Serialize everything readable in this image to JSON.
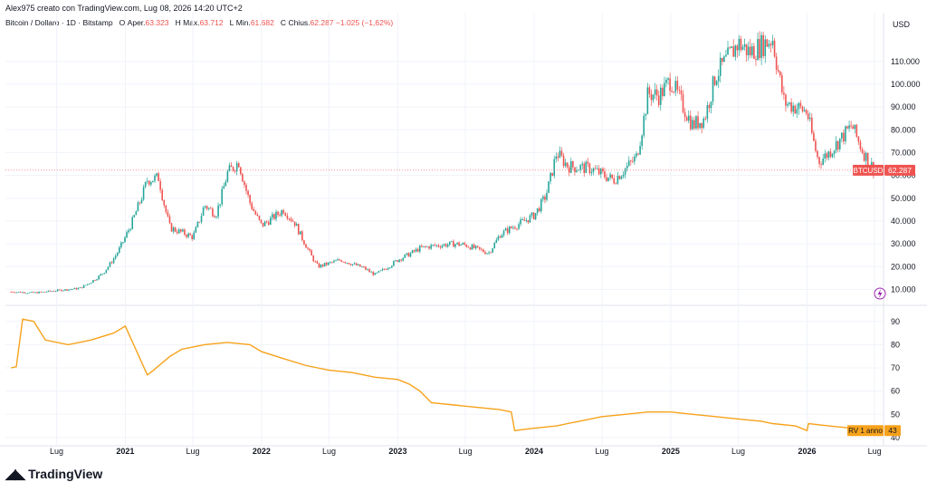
{
  "header": {
    "credit": "Alex975 creato con TradingView.com, Lug 08, 2026 14:20 UTC+2",
    "symbol": "Bitcoin / Dollaro · 1D · Bitstamp",
    "open_label": "O",
    "open_text": "Aper.",
    "open_value": "63.323",
    "high_label": "H",
    "high_text": "Max.",
    "high_value": "63.712",
    "low_label": "L",
    "low_text": "Min.",
    "low_value": "61.682",
    "close_label": "C",
    "close_text": "Chius.",
    "close_value": "62.287",
    "change_value": "−1.025 (−1,62%)"
  },
  "footer": {
    "brand": "TradingView"
  },
  "colors": {
    "up": "#26a69a",
    "down": "#ef5350",
    "indicator": "#f7a21b",
    "last_price": "#ef5350",
    "grid": "#f0f3fa"
  },
  "chart_data": [
    {
      "type": "line",
      "title": "",
      "series": [
        {
          "name": "BTCUSD",
          "x": [
            "2020-03",
            "2020-05",
            "2020-07",
            "2020-09",
            "2020-11",
            "2021-01",
            "2021-02",
            "2021-03",
            "2021-04",
            "2021-05",
            "2021-06",
            "2021-07",
            "2021-08",
            "2021-09",
            "2021-10",
            "2021-11",
            "2021-12",
            "2022-01",
            "2022-03",
            "2022-04",
            "2022-05",
            "2022-06",
            "2022-08",
            "2022-10",
            "2022-11",
            "2023-01",
            "2023-03",
            "2023-04",
            "2023-06",
            "2023-07",
            "2023-09",
            "2023-10",
            "2023-11",
            "2024-01",
            "2024-02",
            "2024-03",
            "2024-04",
            "2024-06",
            "2024-08",
            "2024-10",
            "2024-11",
            "2024-12",
            "2025-01",
            "2025-03",
            "2025-04",
            "2025-05",
            "2025-07",
            "2025-08",
            "2025-10",
            "2025-11",
            "2026-01",
            "2026-02",
            "2026-03",
            "2026-04",
            "2026-05",
            "2026-06",
            "2026-07"
          ],
          "values": [
            9000,
            8500,
            9500,
            10500,
            17000,
            33000,
            45000,
            58000,
            59000,
            37000,
            35000,
            33000,
            47000,
            43000,
            61000,
            66000,
            48000,
            38000,
            45000,
            39000,
            29000,
            20000,
            23000,
            19500,
            16500,
            23000,
            28000,
            29000,
            30000,
            29500,
            26000,
            34000,
            37000,
            42500,
            51000,
            70000,
            64000,
            63000,
            58000,
            68000,
            96000,
            95000,
            102000,
            82000,
            85000,
            104000,
            118000,
            114000,
            120000,
            92000,
            88000,
            66000,
            70000,
            76000,
            82000,
            70000,
            62287
          ]
        }
      ],
      "axis_labels": [
        "USD"
      ],
      "y_ticks": [
        "110.000",
        "100.000",
        "90.000",
        "80.000",
        "70.000",
        "60.000",
        "50.000",
        "40.000",
        "30.000",
        "20.000",
        "10.000"
      ],
      "ylim": [
        5000,
        125000
      ],
      "last_price_label": "BTCUSD",
      "last_price_value": "62.287",
      "grid": true
    },
    {
      "type": "line",
      "series": [
        {
          "name": "RV 1 anno",
          "x": [
            "2020-03",
            "2020-03-15",
            "2020-04",
            "2020-05",
            "2020-06",
            "2020-08",
            "2020-10",
            "2020-12",
            "2021-01",
            "2021-03",
            "2021-03-10",
            "2021-05",
            "2021-06",
            "2021-08",
            "2021-10",
            "2021-12",
            "2022-01",
            "2022-03",
            "2022-05",
            "2022-07",
            "2022-09",
            "2022-11",
            "2023-01",
            "2023-02",
            "2023-03",
            "2023-04",
            "2023-06",
            "2023-08",
            "2023-10",
            "2023-11",
            "2023-11-10",
            "2024-01",
            "2024-03",
            "2024-05",
            "2024-07",
            "2024-09",
            "2024-11",
            "2025-01",
            "2025-03",
            "2025-05",
            "2025-07",
            "2025-09",
            "2025-10",
            "2025-12",
            "2026-01",
            "2026-01-05",
            "2026-03",
            "2026-05",
            "2026-07"
          ],
          "values": [
            70,
            70.5,
            91,
            90,
            82,
            80,
            82,
            85,
            88,
            67,
            68,
            75,
            78,
            80,
            81,
            80,
            77,
            74,
            71,
            69,
            68,
            66,
            65,
            63,
            60,
            55,
            54,
            53,
            52,
            51,
            43,
            44,
            45,
            47,
            49,
            50,
            51,
            51,
            50,
            49,
            48,
            47,
            46,
            45,
            43,
            46,
            45,
            44,
            43
          ]
        }
      ],
      "y_ticks": [
        "90",
        "80",
        "70",
        "60",
        "50",
        "40"
      ],
      "ylim": [
        38,
        95
      ],
      "last_value_label": "RV 1 anno",
      "last_value": "43",
      "grid": true
    }
  ],
  "x_axis": {
    "labels": [
      {
        "text": "Lug",
        "date": "2020-07",
        "bold": false
      },
      {
        "text": "2021",
        "date": "2021-01",
        "bold": true
      },
      {
        "text": "Lug",
        "date": "2021-07",
        "bold": false
      },
      {
        "text": "2022",
        "date": "2022-01",
        "bold": true
      },
      {
        "text": "Lug",
        "date": "2022-07",
        "bold": false
      },
      {
        "text": "2023",
        "date": "2023-01",
        "bold": true
      },
      {
        "text": "Lug",
        "date": "2023-07",
        "bold": false
      },
      {
        "text": "2024",
        "date": "2024-01",
        "bold": true
      },
      {
        "text": "Lug",
        "date": "2024-07",
        "bold": false
      },
      {
        "text": "2025",
        "date": "2025-01",
        "bold": true
      },
      {
        "text": "Lug",
        "date": "2025-07",
        "bold": false
      },
      {
        "text": "2026",
        "date": "2026-01",
        "bold": true
      },
      {
        "text": "Lug",
        "date": "2026-07",
        "bold": false
      }
    ]
  }
}
